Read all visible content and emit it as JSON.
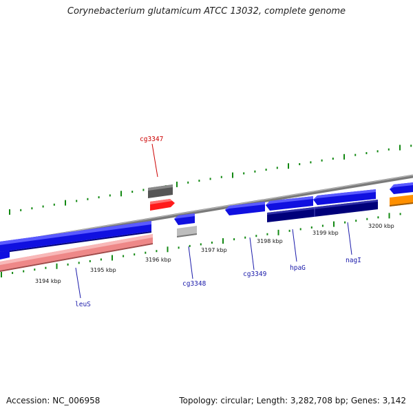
{
  "title": "Corynebacterium glutamicum ATCC 13032, complete genome",
  "footer": {
    "accession": "Accession: NC_006958",
    "summary": "Topology: circular; Length: 3,282,708 bp; Genes: 3,142"
  },
  "colors": {
    "forward_cds": "#1a1aff",
    "dark_cds": "#00007a",
    "rrna_pink": "#ee8080",
    "red_feature": "#ff1a1a",
    "grey_feature": "#606060",
    "light_grey_feature": "#bbbbbb",
    "orange_feature": "#ff9000",
    "backbone": "#808080",
    "ticks": "#118811",
    "label_blue": "#1a1aaa",
    "label_red": "#cc0000"
  },
  "tick_labels": [
    "3194 kbp",
    "3195 kbp",
    "3196 kbp",
    "3197 kbp",
    "3198 kbp",
    "3199 kbp",
    "3200 kbp"
  ],
  "gene_labels": [
    {
      "name": "cg3347",
      "color": "red"
    },
    {
      "name": "cg3348",
      "color": "blue"
    },
    {
      "name": "cg3349",
      "color": "blue"
    },
    {
      "name": "hpaG",
      "color": "blue"
    },
    {
      "name": "nagI",
      "color": "blue"
    },
    {
      "name": "leuS",
      "color": "blue"
    }
  ]
}
